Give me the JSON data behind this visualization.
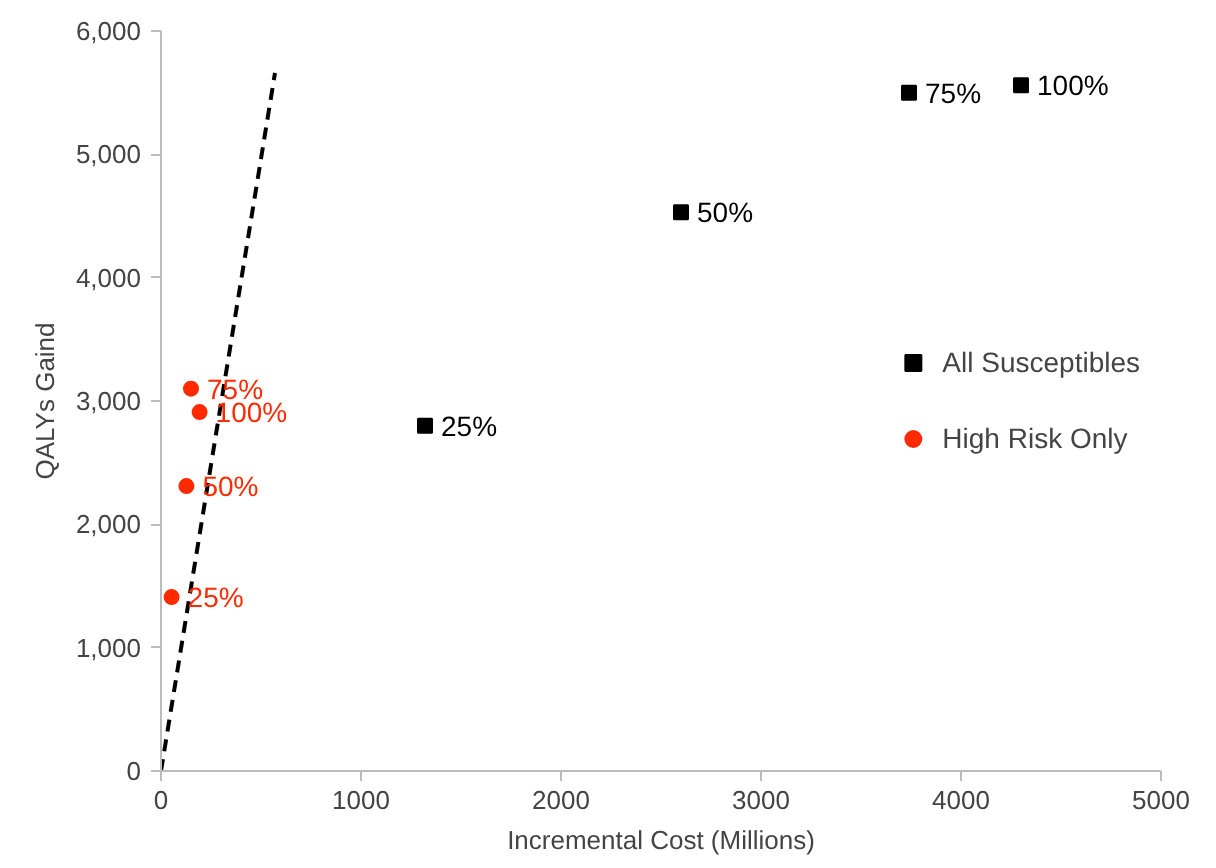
{
  "chart_data": {
    "type": "scatter",
    "xlabel": "Incremental Cost (Millions)",
    "ylabel": "QALYs Gaind",
    "xlim": [
      0,
      5000
    ],
    "xticks": [
      0,
      1000,
      2000,
      3000,
      4000,
      5000
    ],
    "ylim": [
      0,
      6000
    ],
    "yticks": [
      {
        "value": 0,
        "label": "0"
      },
      {
        "value": 1000,
        "label": "1,000"
      },
      {
        "value": 2000,
        "label": "2,000"
      },
      {
        "value": 3000,
        "label": "3,000"
      },
      {
        "value": 4000,
        "label": "4,000"
      },
      {
        "value": 5000,
        "label": "5,000"
      },
      {
        "value": 6000,
        "label": "6,000"
      }
    ],
    "grid": false,
    "legend": "right",
    "series": [
      {
        "name": "All Susceptibles",
        "color": "#000000",
        "marker": "square",
        "x": [
          1320,
          2600,
          3740,
          4300
        ],
        "values": [
          2800,
          4530,
          5500,
          5560
        ]
      },
      {
        "name": "High Risk Only",
        "color": "#ff2a00",
        "marker": "circle",
        "x": [
          53,
          127,
          150,
          193
        ],
        "values": [
          1410,
          2310,
          3100,
          2910
        ]
      },
      {
        "type": "line",
        "color": "#000000",
        "line_style": "dashed",
        "x": [
          0,
          570
        ],
        "values": [
          0,
          5660
        ]
      }
    ],
    "annotations": [
      {
        "text": "25%",
        "x": 1320,
        "y": 2800
      },
      {
        "text": "50%",
        "x": 2600,
        "y": 4530
      },
      {
        "text": "75%",
        "x": 3740,
        "y": 5500
      },
      {
        "text": "100%",
        "x": 4300,
        "y": 5560
      },
      {
        "text": "25%",
        "x": 53,
        "y": 1410
      },
      {
        "text": "50%",
        "x": 127,
        "y": 2310
      },
      {
        "text": "75%",
        "x": 150,
        "y": 3100
      },
      {
        "text": "100%",
        "x": 193,
        "y": 2910
      }
    ]
  }
}
